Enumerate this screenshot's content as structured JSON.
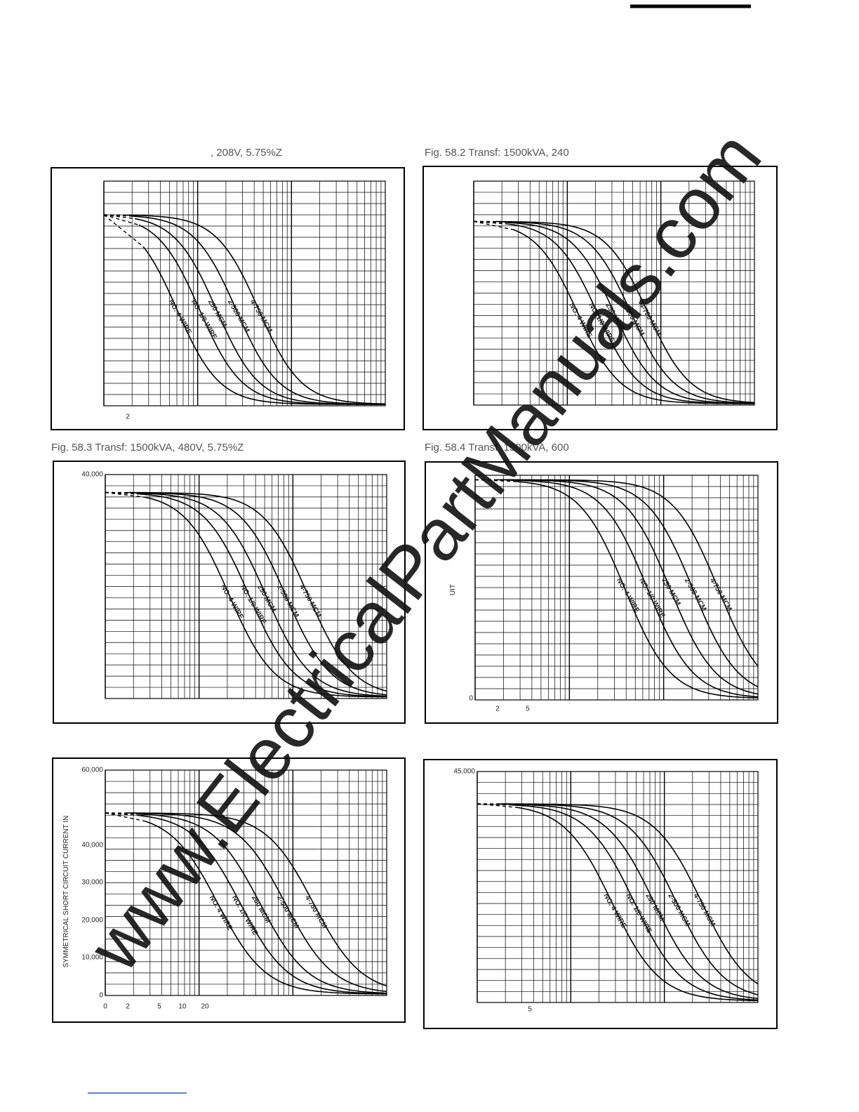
{
  "watermark": "www.ElectricalPartManuals.com",
  "panels": [
    {
      "caption": ", 208V, 5.75%Z",
      "x_labels": [
        "2"
      ],
      "y_labels": [],
      "curve_labels": [
        "4-750 MCM",
        "2-500 MCM",
        "250 MCM",
        "NO. 1/0 WIRE",
        "NO. 4 WIRE"
      ]
    },
    {
      "caption": "Fig. 58.2 Transf: 1500kVA, 240",
      "x_labels": [],
      "y_labels": [],
      "curve_labels": [
        "4-750 MCM",
        "2-500 MCM",
        "250 MCM",
        "NO. 1/0 WIRE",
        "NO. 4 WIRE"
      ]
    },
    {
      "caption": "Fig. 58.3 Transf: 1500kVA, 480V, 5.75%Z",
      "x_labels": [],
      "y_labels": [
        "40,000"
      ],
      "curve_labels": [
        "4-750 MCM",
        "2-500 MCM",
        "250 MCM",
        "NO. 1/0 WIRE",
        "NO. 4 WIRE"
      ]
    },
    {
      "caption": "Fig. 58.4 Transf: 1500kVA, 600",
      "x_labels": [
        "2",
        "5"
      ],
      "y_labels": [
        "0"
      ],
      "axis_title": "UIT",
      "curve_labels": [
        "4-750 MCM",
        "2-500 MCM",
        "250 MCM",
        "NO. 1/0 WIRE",
        "NO. 4 WIRE"
      ]
    },
    {
      "x_labels": [
        "0",
        "2",
        "5",
        "10",
        "20"
      ],
      "y_labels": [
        "60,000",
        "40,000",
        "30,000",
        "20,000",
        "10,000",
        "0"
      ],
      "axis_title": "SYMMETRICAL SHORT CIRCUIT CURRENT IN",
      "curve_labels": [
        "4-750 MCM",
        "2-500 MCM",
        "250 MCM",
        "NO. 1/0 WIRE",
        "NO. 4 WIRE"
      ]
    },
    {
      "x_labels": [
        "5"
      ],
      "y_labels": [
        "45,000"
      ],
      "curve_labels": [
        "4-750 MCM",
        "2-500 MCM",
        "250 MCM",
        "NO. 1/0 WIRE",
        "NO. 4 WIRE"
      ]
    }
  ]
}
